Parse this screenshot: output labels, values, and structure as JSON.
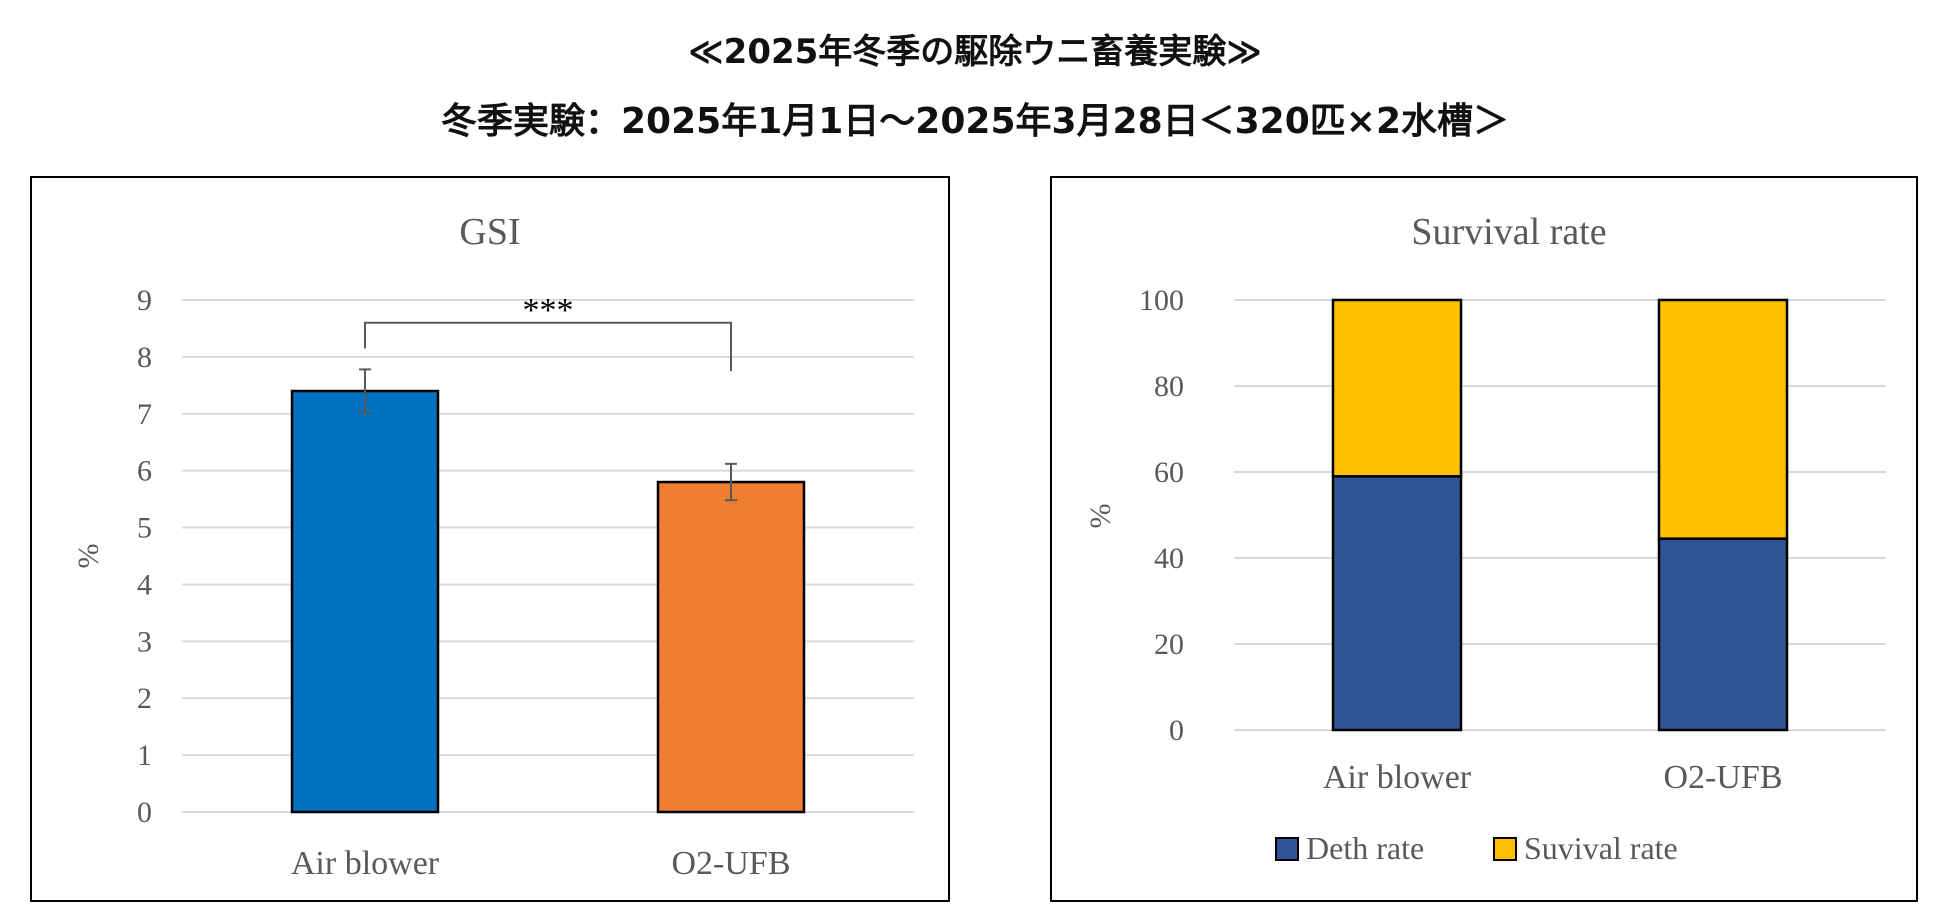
{
  "header": {
    "title": "≪2025年冬季の駆除ウニ畜養実験≫",
    "subtitle": "冬季実験：2025年1月1日～2025年3月28日＜320匹×2水槽＞"
  },
  "colors": {
    "air_blower": "#0070C0",
    "o2_ufb": "#ED7D31",
    "death": "#2F5597",
    "survival": "#FFC000",
    "grid": "#D9D9D9",
    "axis_text": "#595959"
  },
  "chart_data": [
    {
      "id": "gsi",
      "type": "bar",
      "title": "GSI",
      "ylabel": "%",
      "xlabel": "",
      "ylim": [
        0,
        9
      ],
      "yticks": [
        0,
        1,
        2,
        3,
        4,
        5,
        6,
        7,
        8,
        9
      ],
      "grid": true,
      "categories": [
        "Air blower",
        "O2-UFB"
      ],
      "values": [
        7.4,
        5.8
      ],
      "errors": [
        0.38,
        0.32
      ],
      "significance": {
        "label": "***",
        "between": [
          0,
          1
        ]
      }
    },
    {
      "id": "survival",
      "type": "bar",
      "stacked": true,
      "title": "Survival rate",
      "ylabel": "%",
      "xlabel": "",
      "ylim": [
        0,
        100
      ],
      "yticks": [
        0,
        20,
        40,
        60,
        80,
        100
      ],
      "grid": true,
      "legend_position": "bottom",
      "categories": [
        "Air blower",
        "O2-UFB"
      ],
      "series": [
        {
          "name": "Deth rate",
          "values": [
            59,
            44.5
          ]
        },
        {
          "name": "Suvival rate",
          "values": [
            41,
            55.5
          ]
        }
      ]
    }
  ]
}
